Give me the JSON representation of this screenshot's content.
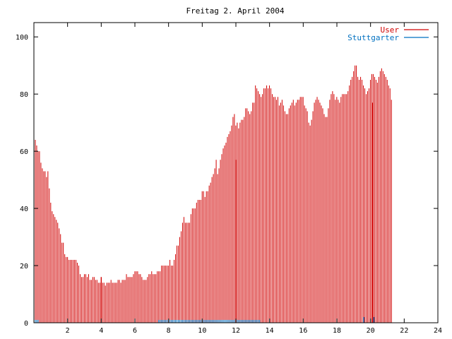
{
  "chart_data": {
    "type": "bar",
    "title": "Freitag 2. April 2004",
    "xlabel": "",
    "ylabel": "",
    "xlim": [
      0,
      24
    ],
    "ylim": [
      0,
      105
    ],
    "x_ticks": [
      2,
      4,
      6,
      8,
      10,
      12,
      14,
      16,
      18,
      20,
      22,
      24
    ],
    "y_ticks": [
      0,
      20,
      40,
      60,
      80,
      100
    ],
    "grid": false,
    "legend_position": "top-right",
    "colors": {
      "User": "#d10000",
      "Stuttgarter": "#0070c0"
    },
    "x_step_hours": 0.0833,
    "series": [
      {
        "name": "User",
        "values": [
          66,
          64,
          62,
          60,
          60,
          56,
          54,
          53,
          53,
          51,
          53,
          47,
          42,
          39,
          38,
          37,
          36,
          35,
          33,
          31,
          28,
          28,
          24,
          23,
          23,
          22,
          22,
          22,
          22,
          22,
          22,
          21,
          20,
          17,
          16,
          16,
          17,
          17,
          16,
          17,
          15,
          15,
          16,
          16,
          15,
          15,
          14,
          14,
          14,
          14,
          14,
          13,
          14,
          14,
          14,
          15,
          14,
          14,
          14,
          14,
          15,
          15,
          14,
          15,
          15,
          15,
          17,
          16,
          16,
          16,
          16,
          17,
          18,
          18,
          18,
          17,
          17,
          16,
          15,
          15,
          15,
          16,
          17,
          17,
          18,
          17,
          17,
          17,
          18,
          18,
          18,
          20,
          20,
          20,
          20,
          20,
          20,
          22,
          20,
          20,
          22,
          24,
          27,
          27,
          30,
          32,
          35,
          37,
          35,
          35,
          35,
          35,
          38,
          40,
          40,
          40,
          42,
          43,
          43,
          43,
          46,
          46,
          44,
          46,
          46,
          48,
          49,
          51,
          52,
          54,
          57,
          52,
          54,
          57,
          59,
          61,
          62,
          63,
          65,
          66,
          67,
          69,
          72,
          73,
          69,
          70,
          68,
          70,
          71,
          71,
          72,
          75,
          75,
          74,
          73,
          74,
          77,
          77,
          83,
          82,
          81,
          80,
          79,
          80,
          82,
          82,
          83,
          82,
          83,
          82,
          80,
          79,
          79,
          78,
          79,
          76,
          77,
          78,
          76,
          74,
          73,
          73,
          75,
          76,
          77,
          78,
          76,
          77,
          78,
          78,
          79,
          79,
          79,
          76,
          75,
          74,
          70,
          69,
          71,
          74,
          77,
          78,
          79,
          78,
          77,
          76,
          75,
          73,
          72,
          72,
          75,
          78,
          80,
          81,
          80,
          78,
          79,
          78,
          77,
          79,
          80,
          80,
          80,
          80,
          81,
          83,
          85,
          86,
          88,
          90,
          90,
          86,
          85,
          86,
          85,
          83,
          82,
          80,
          81,
          82,
          85,
          87,
          87,
          86,
          85,
          84,
          86,
          88,
          89,
          88,
          87,
          86,
          85,
          83,
          82,
          78
        ]
      },
      {
        "name": "Stuttgarter",
        "values": [
          1,
          1,
          1,
          1,
          0,
          0,
          0,
          0,
          0,
          0,
          0,
          0,
          0,
          0,
          0,
          0,
          0,
          0,
          0,
          0,
          0,
          0,
          0,
          0,
          0,
          0,
          0,
          0,
          0,
          0,
          0,
          0,
          0,
          0,
          0,
          0,
          0,
          0,
          0,
          0,
          0,
          0,
          0,
          0,
          0,
          0,
          0,
          0,
          0,
          0,
          0,
          0,
          0,
          0,
          0,
          0,
          0,
          0,
          0,
          0,
          0,
          0,
          0,
          0,
          0,
          0,
          0,
          0,
          0,
          0,
          0,
          0,
          0,
          0,
          0,
          0,
          0,
          0,
          0,
          0,
          0,
          0,
          0,
          0,
          0,
          0,
          0,
          0,
          0,
          1,
          1,
          1,
          1,
          1,
          1,
          1,
          1,
          1,
          1,
          1,
          1,
          1,
          1,
          1,
          1,
          1,
          1,
          1,
          1,
          1,
          1,
          1,
          1,
          1,
          1,
          1,
          1,
          1,
          1,
          1,
          1,
          1,
          1,
          1,
          1,
          1,
          1,
          1,
          1,
          1,
          1,
          1,
          1,
          1,
          1,
          1,
          1,
          1,
          1,
          1,
          1,
          1,
          1,
          1,
          1,
          1,
          1,
          1,
          1,
          1,
          1,
          1,
          1,
          1,
          1,
          1,
          1,
          1,
          1,
          1,
          1,
          1,
          0,
          0,
          0,
          0,
          0,
          0,
          0,
          0,
          0,
          0,
          0,
          0,
          0,
          0,
          0,
          0,
          0,
          0,
          0,
          0,
          0,
          0,
          0,
          0,
          0,
          0,
          0,
          0,
          0,
          0,
          0,
          0,
          0,
          0,
          0,
          0,
          0,
          0,
          0,
          0,
          0,
          0,
          0,
          0,
          0,
          0,
          0,
          0,
          0,
          0,
          0,
          0,
          0,
          0,
          0,
          0,
          0,
          0,
          0,
          0,
          0,
          0,
          0,
          0,
          0,
          0,
          0,
          0,
          0,
          0,
          0,
          0,
          0,
          0,
          0,
          0,
          0,
          0,
          0,
          0,
          0,
          0,
          0,
          0,
          0,
          0,
          0,
          0,
          0,
          0,
          0,
          0,
          0,
          0,
          0,
          0,
          0,
          0,
          0,
          0,
          0,
          0,
          0,
          0,
          0,
          0,
          0,
          0,
          0,
          0,
          0,
          0,
          0,
          0,
          0,
          0,
          0,
          0,
          0,
          0,
          0,
          0,
          0,
          0,
          0,
          0,
          0,
          0,
          0,
          0,
          0,
          0,
          0,
          0
        ]
      }
    ],
    "spikes": [
      {
        "series": "User",
        "x": 4.0,
        "value": 16
      },
      {
        "series": "User",
        "x": 12.0,
        "value": 57
      },
      {
        "series": "User",
        "x": 20.1,
        "value": 77
      },
      {
        "series": "Stuttgarter",
        "x": 19.6,
        "value": 2
      },
      {
        "series": "Stuttgarter",
        "x": 20.2,
        "value": 2
      }
    ]
  }
}
